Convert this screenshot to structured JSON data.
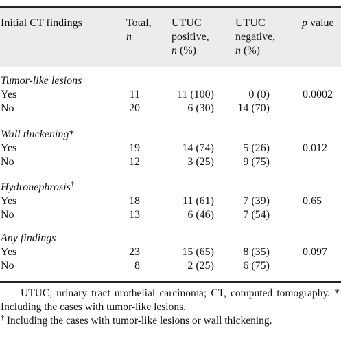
{
  "header": {
    "col1": "Initial CT findings",
    "col2": [
      "Total,",
      "n"
    ],
    "col3": [
      "UTUC",
      "positive,",
      "n",
      " (%)"
    ],
    "col4": [
      "UTUC",
      "negative,",
      "n",
      " (%)"
    ],
    "col5": [
      "p",
      " value"
    ]
  },
  "sections": [
    {
      "title": "Tumor-like lesions",
      "mark": "",
      "rows": [
        {
          "label": "Yes",
          "total": "11",
          "positive": "11 (100)",
          "negative": "0 (0)",
          "p": "0.0002"
        },
        {
          "label": "No",
          "total": "20",
          "positive": "6 (30)",
          "negative": "14 (70)",
          "p": ""
        }
      ]
    },
    {
      "title": "Wall thickening",
      "mark": "*",
      "rows": [
        {
          "label": "Yes",
          "total": "19",
          "positive": "14 (74)",
          "negative": "5 (26)",
          "p": "0.012"
        },
        {
          "label": "No",
          "total": "12",
          "positive": "3 (25)",
          "negative": "9 (75)",
          "p": ""
        }
      ]
    },
    {
      "title": "Hydronephrosis",
      "mark": "†",
      "rows": [
        {
          "label": "Yes",
          "total": "18",
          "positive": "11 (61)",
          "negative": "7 (39)",
          "p": "0.65"
        },
        {
          "label": "No",
          "total": "13",
          "positive": "6 (46)",
          "negative": "7 (54)",
          "p": ""
        }
      ]
    },
    {
      "title": "Any findings",
      "mark": "",
      "rows": [
        {
          "label": "Yes",
          "total": "23",
          "positive": "15 (65)",
          "negative": "8 (35)",
          "p": "0.097"
        },
        {
          "label": "No",
          "total": "8",
          "positive": "2 (25)",
          "negative": "6 (75)",
          "p": ""
        }
      ]
    }
  ],
  "footnote": {
    "abbrev": "UTUC, urinary tract urothelial carcinoma; CT, computed tomography. * Including the cases with tumor-like lesions.",
    "dagger_mark": "†",
    "dagger_text": " Including the cases with tumor-like lesions or wall thickening."
  }
}
